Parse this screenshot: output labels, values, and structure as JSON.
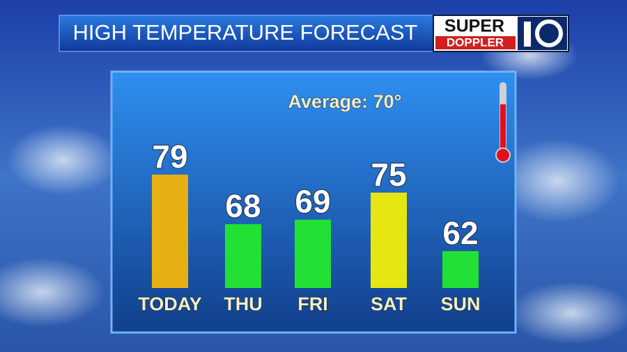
{
  "chart_data": {
    "type": "bar",
    "title": "HIGH TEMPERATURE FORECAST",
    "logo": {
      "top": "SUPER",
      "bottom": "DOPPLER"
    },
    "annotation": "Average: 70°",
    "categories": [
      "TODAY",
      "THU",
      "FRI",
      "SAT",
      "SUN"
    ],
    "values": [
      79,
      68,
      69,
      75,
      62
    ],
    "colors": [
      "#e6b012",
      "#22e034",
      "#22e034",
      "#e6e612",
      "#22e034"
    ]
  }
}
